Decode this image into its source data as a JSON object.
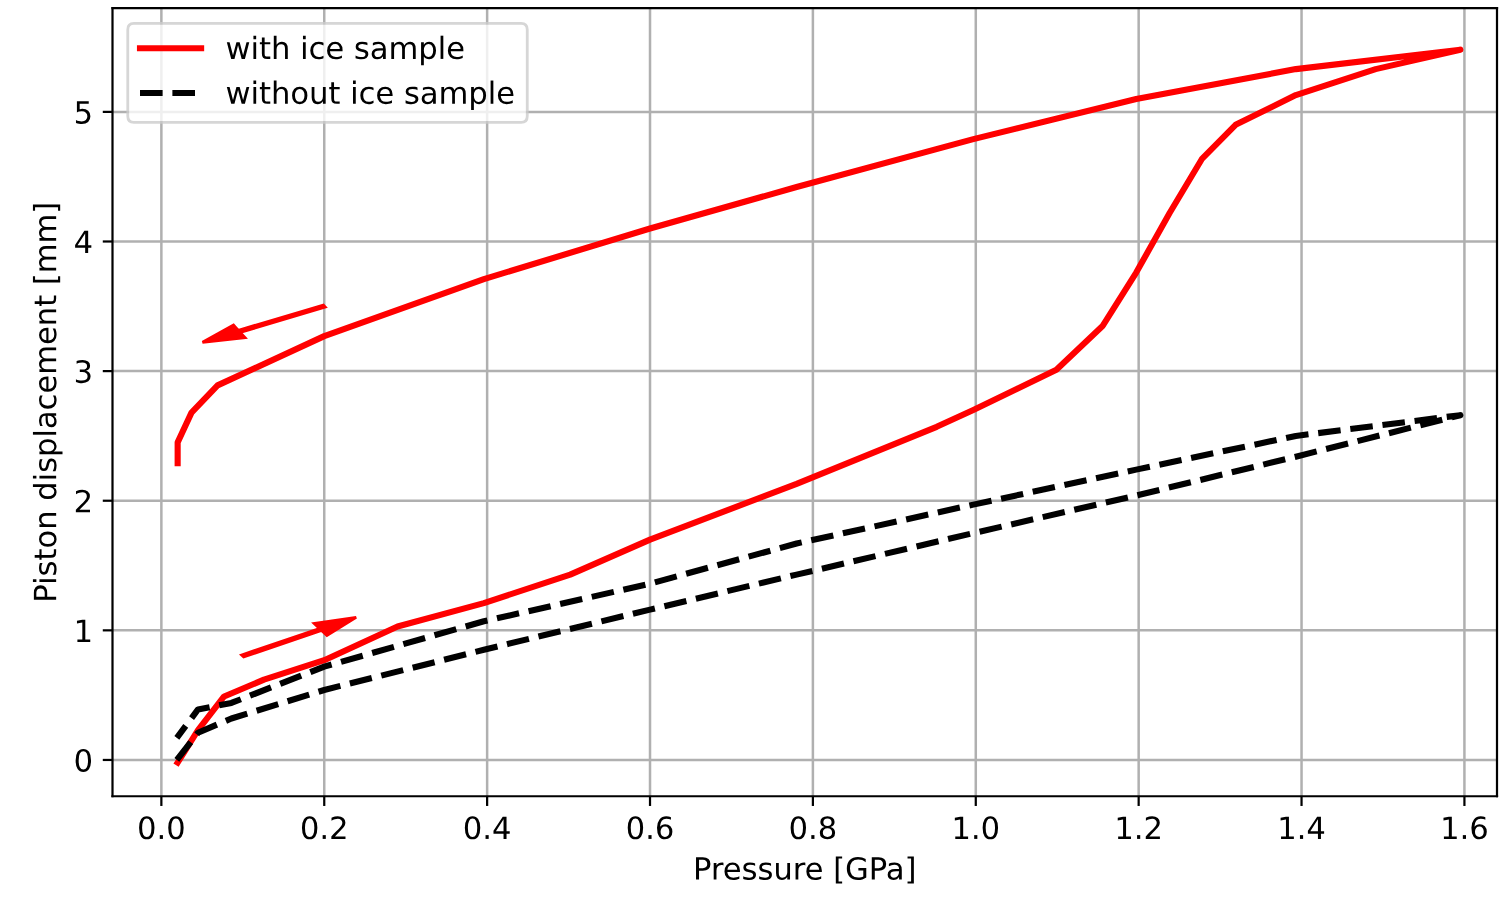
{
  "chart_data": {
    "type": "line",
    "xlabel": "Pressure [GPa]",
    "ylabel": "Piston displacement [mm]",
    "xlim": [
      -0.06,
      1.64
    ],
    "ylim": [
      -0.28,
      5.8
    ],
    "xticks": [
      {
        "value": 0,
        "label": "0.0"
      },
      {
        "value": 0.2,
        "label": "0.2"
      },
      {
        "value": 0.4,
        "label": "0.4"
      },
      {
        "value": 0.6,
        "label": "0.6"
      },
      {
        "value": 0.8,
        "label": "0.8"
      },
      {
        "value": 1,
        "label": "1.0"
      },
      {
        "value": 1.2,
        "label": "1.2"
      },
      {
        "value": 1.4,
        "label": "1.4"
      },
      {
        "value": 1.6,
        "label": "1.6"
      }
    ],
    "yticks": [
      0,
      1,
      2,
      3,
      4,
      5
    ],
    "grid": true,
    "legend": "top left",
    "series": [
      {
        "name": "with ice sample",
        "color": "#ff0000",
        "line_style": "solid",
        "x": [
          0.02,
          0.045,
          0.077,
          0.126,
          0.2,
          0.29,
          0.396,
          0.502,
          0.6,
          0.78,
          0.952,
          0.997,
          1.099,
          1.156,
          1.197,
          1.238,
          1.278,
          1.319,
          1.393,
          1.491,
          1.595,
          1.393,
          1.197,
          0.997,
          0.78,
          0.6,
          0.396,
          0.2,
          0.069,
          0.037,
          0.02,
          0.02
        ],
        "values": [
          -0.02,
          0.23,
          0.49,
          0.62,
          0.77,
          1.03,
          1.21,
          1.43,
          1.7,
          2.13,
          2.57,
          2.7,
          3.01,
          3.35,
          3.76,
          4.22,
          4.64,
          4.9,
          5.13,
          5.33,
          5.48,
          5.33,
          5.1,
          4.79,
          4.42,
          4.1,
          3.71,
          3.27,
          2.89,
          2.68,
          2.45,
          2.29
        ]
      },
      {
        "name": "without ice sample",
        "color": "#000000",
        "line_style": "dashed",
        "x": [
          0.019,
          0.045,
          0.086,
          0.2,
          0.396,
          0.6,
          0.78,
          0.997,
          1.197,
          1.393,
          1.595,
          1.393,
          1.197,
          0.997,
          0.78,
          0.6,
          0.396,
          0.2,
          0.086,
          0.045,
          0.019
        ],
        "values": [
          0.0,
          0.21,
          0.32,
          0.54,
          0.85,
          1.16,
          1.43,
          1.75,
          2.04,
          2.34,
          2.66,
          2.5,
          2.24,
          1.97,
          1.67,
          1.36,
          1.07,
          0.72,
          0.44,
          0.39,
          0.17
        ]
      }
    ]
  }
}
